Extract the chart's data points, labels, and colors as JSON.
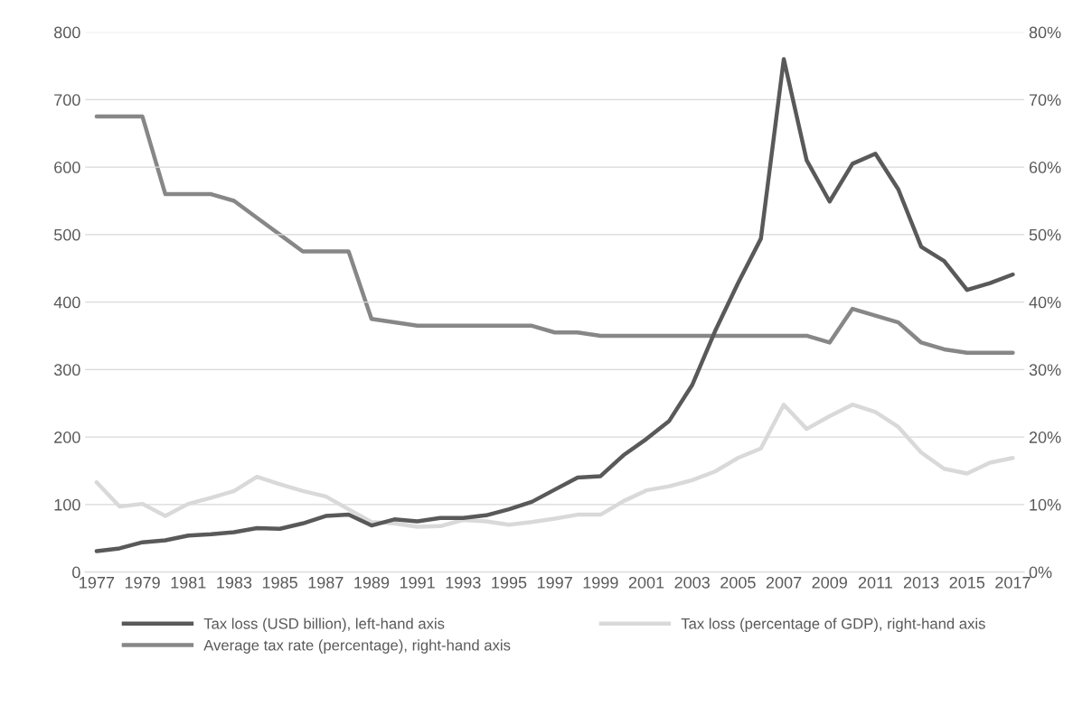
{
  "chart_data": {
    "type": "line",
    "categories": [
      "1977",
      null,
      "1979",
      null,
      "1981",
      null,
      "1983",
      null,
      "1985",
      null,
      "1987",
      null,
      "1989",
      null,
      "1991",
      null,
      "1993",
      null,
      "1995",
      null,
      "1997",
      null,
      "1999",
      null,
      "2001",
      null,
      "2003",
      null,
      "2005",
      null,
      "2007",
      null,
      "2009",
      null,
      "2011",
      null,
      "2013",
      null,
      "2015",
      null,
      "2017"
    ],
    "series": [
      {
        "name": "Tax loss (USD billion), left-hand axis",
        "color": "#595959",
        "values": [
          31,
          35,
          44,
          47,
          54,
          56,
          59,
          65,
          64,
          72,
          83,
          85,
          69,
          78,
          75,
          80,
          80,
          84,
          93,
          104,
          122,
          140,
          142,
          173,
          197,
          224,
          277,
          357,
          428,
          494,
          760,
          610,
          549,
          605,
          620,
          567,
          482,
          461,
          418,
          428,
          441
        ]
      },
      {
        "name": "Average tax rate (percentage), right-hand axis",
        "color": "#878787",
        "axis": "y2",
        "values": [
          67.5,
          67.5,
          67.5,
          56,
          56,
          56,
          55,
          52.5,
          50,
          47.5,
          47.5,
          47.5,
          37.5,
          37,
          36.5,
          36.5,
          36.5,
          36.5,
          36.5,
          36.5,
          35.5,
          35.5,
          35,
          35,
          35,
          35,
          35,
          35,
          35,
          35,
          35,
          35,
          34,
          39,
          38,
          37,
          34,
          33,
          32.5,
          32.5,
          32.5
        ]
      },
      {
        "name": "Tax loss (percentage of GDP), right-hand axis",
        "color": "#d9d9d9",
        "axis": "y2",
        "values": [
          13.3,
          9.7,
          10.1,
          8.3,
          10.1,
          11,
          12,
          14.1,
          13,
          12,
          11.2,
          9.3,
          7.4,
          7.2,
          6.7,
          6.8,
          7.7,
          7.5,
          7,
          7.4,
          7.9,
          8.5,
          8.5,
          10.5,
          12.1,
          12.7,
          13.6,
          14.9,
          16.9,
          18.3,
          24.8,
          21.2,
          23.1,
          24.8,
          23.7,
          21.5,
          17.7,
          15.3,
          14.6,
          16.2,
          16.9
        ]
      }
    ],
    "ylim": [
      0,
      800
    ],
    "yticks": [
      0,
      100,
      200,
      300,
      400,
      500,
      600,
      700,
      800
    ],
    "y2lim": [
      0,
      80
    ],
    "y2ticks": [
      {
        "value": 0,
        "label": "0%"
      },
      {
        "value": 10,
        "label": "10%"
      },
      {
        "value": 20,
        "label": "20%"
      },
      {
        "value": 30,
        "label": "30%"
      },
      {
        "value": 40,
        "label": "40%"
      },
      {
        "value": 50,
        "label": "50%"
      },
      {
        "value": 60,
        "label": "60%"
      },
      {
        "value": 70,
        "label": "70%"
      },
      {
        "value": 80,
        "label": "80%"
      }
    ],
    "grid": "y",
    "legend": "bottom",
    "marker": "none",
    "line_style": "solid"
  }
}
